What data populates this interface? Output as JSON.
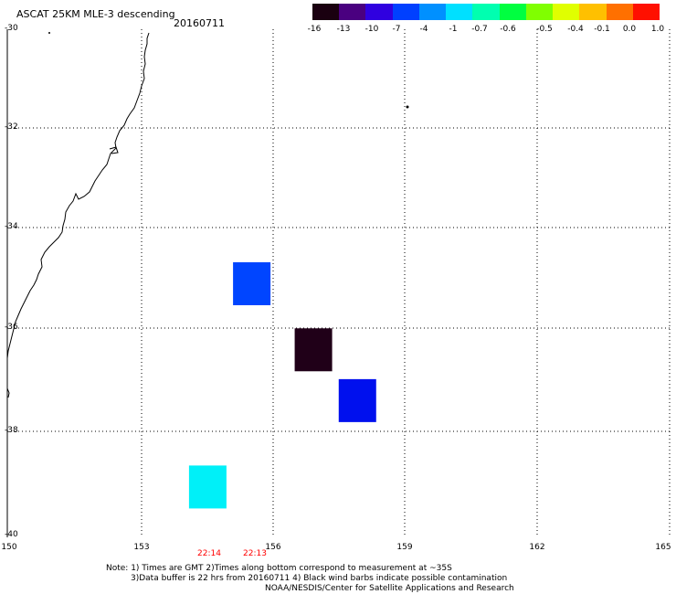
{
  "header": {
    "title": "ASCAT 25KM MLE-3 descending",
    "date": "20160711"
  },
  "colorbar": {
    "labels": [
      "-16",
      "-13",
      "-10",
      "-7",
      "-4",
      "-1",
      "-0.7",
      "-0.6",
      "-0.5",
      "-0.4",
      "-0.1",
      "0.0",
      "1.0"
    ],
    "colors": [
      "#1a0010",
      "#4a0080",
      "#3000e0",
      "#0040ff",
      "#0090ff",
      "#00e0ff",
      "#00ffb0",
      "#00ff40",
      "#80ff00",
      "#e0ff00",
      "#ffc000",
      "#ff7000",
      "#ff1000"
    ]
  },
  "axes": {
    "lat_labels": [
      "-30",
      "-32",
      "-34",
      "-36",
      "-38",
      "-40"
    ],
    "lon_labels": [
      "150",
      "153",
      "156",
      "159",
      "162",
      "165"
    ]
  },
  "times": [
    "22:14",
    "22:13"
  ],
  "cells": [
    {
      "lon": 155.5,
      "lat": -35.0,
      "color": "#0045ff"
    },
    {
      "lon": 156.9,
      "lat": -36.3,
      "color": "#200018"
    },
    {
      "lon": 157.9,
      "lat": -37.3,
      "color": "#0010ee"
    },
    {
      "lon": 154.5,
      "lat": -39.0,
      "color": "#00f0f8"
    }
  ],
  "notes": {
    "line1": "Note: 1) Times are GMT 2)Times along bottom correspond to measurement at ~35S",
    "line2": "3)Data buffer is 22 hrs from 20160711 4) Black wind barbs indicate possible contamination",
    "line3": "NOAA/NESDIS/Center for Satellite Applications and Research"
  }
}
